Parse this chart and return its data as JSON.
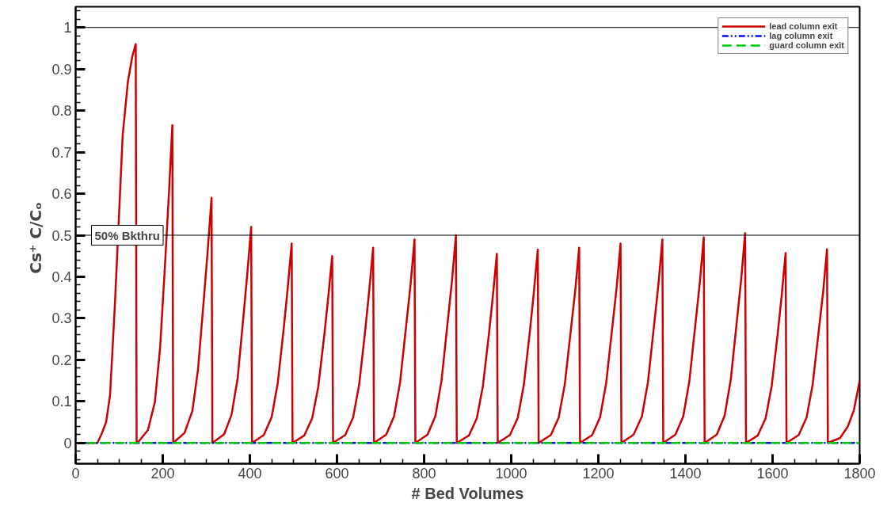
{
  "chart_data": {
    "type": "line",
    "xlabel": "# Bed Volumes",
    "ylabel": "Cs⁺  C/Cₒ",
    "xlim": [
      0,
      1800
    ],
    "ylim": [
      -0.05,
      1.05
    ],
    "xticks": [
      0,
      200,
      400,
      600,
      800,
      1000,
      1200,
      1400,
      1600,
      1800
    ],
    "yticks": [
      0,
      0.1,
      0.2,
      0.3,
      0.4,
      0.5,
      0.6,
      0.7,
      0.8,
      0.9,
      1
    ],
    "grid": false,
    "legend": "top right",
    "marker": "none",
    "ref_lines": [
      {
        "axis": "y",
        "value": 1,
        "label": null,
        "color": "#000000"
      },
      {
        "axis": "y",
        "value": 0.5,
        "label": "50% Bkthru",
        "color": "#000000"
      }
    ],
    "series": [
      {
        "name": "lead column exit",
        "color": "#cc0000",
        "line_style": "solid",
        "x": [
          25,
          50,
          59,
          70,
          79,
          90,
          108,
          120,
          130,
          138,
          140,
          142,
          166,
          182,
          194,
          206,
          214,
          222,
          224,
          250,
          268,
          281,
          294,
          303,
          312,
          314,
          341,
          358,
          372,
          385,
          394,
          403,
          405,
          432,
          450,
          464,
          478,
          487,
          496,
          498,
          525,
          543,
          557,
          571,
          580,
          589,
          591,
          619,
          637,
          651,
          665,
          674,
          683,
          685,
          713,
          731,
          745,
          759,
          769,
          778,
          780,
          808,
          826,
          840,
          854,
          864,
          873,
          875,
          903,
          921,
          935,
          949,
          958,
          967,
          969,
          997,
          1015,
          1029,
          1043,
          1052,
          1061,
          1063,
          1091,
          1109,
          1123,
          1137,
          1147,
          1156,
          1158,
          1186,
          1204,
          1218,
          1232,
          1242,
          1251,
          1253,
          1281,
          1300,
          1314,
          1328,
          1338,
          1347,
          1349,
          1377,
          1395,
          1409,
          1423,
          1433,
          1442,
          1444,
          1472,
          1490,
          1504,
          1518,
          1528,
          1537,
          1539,
          1566,
          1584,
          1598,
          1612,
          1621,
          1630,
          1632,
          1660,
          1678,
          1692,
          1706,
          1716,
          1725,
          1727,
          1755,
          1773,
          1787,
          1800
        ],
        "values": [
          0,
          0,
          0.02,
          0.05,
          0.115,
          0.33,
          0.74,
          0.87,
          0.93,
          0.96,
          0,
          0,
          0.031,
          0.099,
          0.23,
          0.444,
          0.597,
          0.765,
          0,
          0.024,
          0.077,
          0.177,
          0.342,
          0.46,
          0.59,
          0,
          0.021,
          0.068,
          0.156,
          0.302,
          0.406,
          0.52,
          0,
          0.019,
          0.062,
          0.144,
          0.278,
          0.374,
          0.48,
          0,
          0.018,
          0.059,
          0.135,
          0.261,
          0.351,
          0.45,
          0,
          0.019,
          0.061,
          0.141,
          0.273,
          0.367,
          0.47,
          0,
          0.02,
          0.064,
          0.147,
          0.284,
          0.382,
          0.49,
          0,
          0.02,
          0.065,
          0.15,
          0.29,
          0.39,
          0.5,
          0,
          0.018,
          0.059,
          0.137,
          0.264,
          0.355,
          0.455,
          0,
          0.019,
          0.06,
          0.14,
          0.27,
          0.363,
          0.465,
          0,
          0.019,
          0.061,
          0.141,
          0.273,
          0.367,
          0.47,
          0,
          0.019,
          0.062,
          0.144,
          0.278,
          0.374,
          0.48,
          0,
          0.02,
          0.064,
          0.147,
          0.284,
          0.382,
          0.49,
          0,
          0.02,
          0.064,
          0.149,
          0.287,
          0.386,
          0.495,
          0,
          0.02,
          0.066,
          0.152,
          0.293,
          0.394,
          0.505,
          0,
          0.018,
          0.059,
          0.137,
          0.265,
          0.356,
          0.457,
          0,
          0.019,
          0.061,
          0.14,
          0.27,
          0.363,
          0.466,
          0,
          0.012,
          0.04,
          0.08,
          0.15
        ]
      },
      {
        "name": "lag column exit",
        "color": "#0000ff",
        "line_style": "dashdotdot",
        "x": [
          18,
          1800
        ],
        "values": [
          0,
          0
        ]
      },
      {
        "name": "guard column exit",
        "color": "#00cc00",
        "line_style": "dashed",
        "x": [
          25,
          1800
        ],
        "values": [
          0,
          0
        ]
      }
    ]
  }
}
